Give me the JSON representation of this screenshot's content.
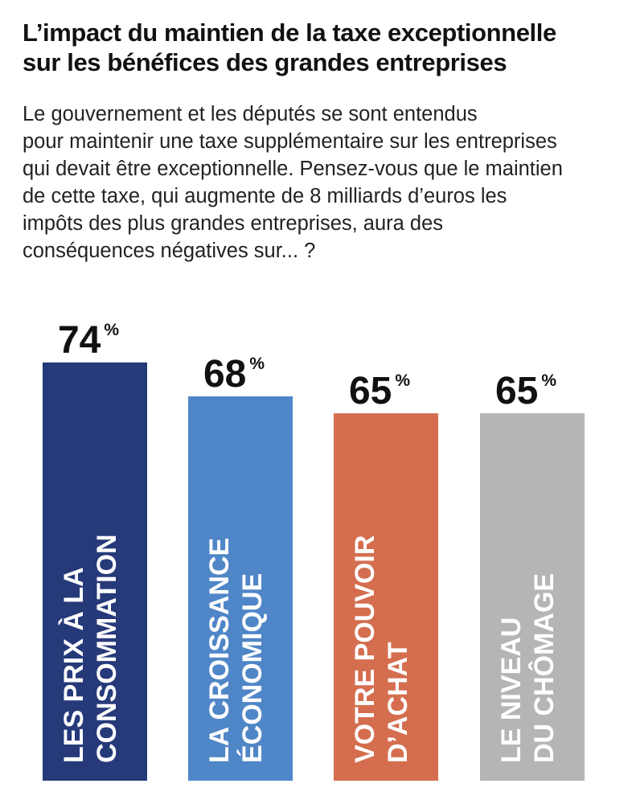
{
  "header": {
    "title_lines": [
      "L’impact du maintien de la taxe exceptionnelle",
      "sur les bénéfices des grandes entreprises"
    ],
    "subtitle_lines": [
      "Le gouvernement et les députés se sont entendus",
      "pour maintenir une taxe supplémentaire sur les entreprises",
      "qui devait être exceptionnelle. Pensez-vous que le maintien",
      "de cette taxe, qui augmente de 8 milliards d’euros les",
      "impôts des plus grandes entreprises, aura des",
      "conséquences négatives sur... ?"
    ]
  },
  "chart_data": {
    "type": "bar",
    "unit": "%",
    "categories": [
      [
        "LES PRIX À LA",
        "CONSOMMATION"
      ],
      [
        "LA CROISSANCE",
        "ÉCONOMIQUE"
      ],
      [
        "VOTRE POUVOIR",
        "D’ACHAT"
      ],
      [
        "LE NIVEAU",
        "DU CHÔMAGE"
      ]
    ],
    "values": [
      74,
      68,
      65,
      65
    ],
    "colors": [
      "#263a7a",
      "#4f86c7",
      "#d46e4f",
      "#b5b5b5"
    ],
    "grid": false,
    "legend": "none"
  }
}
